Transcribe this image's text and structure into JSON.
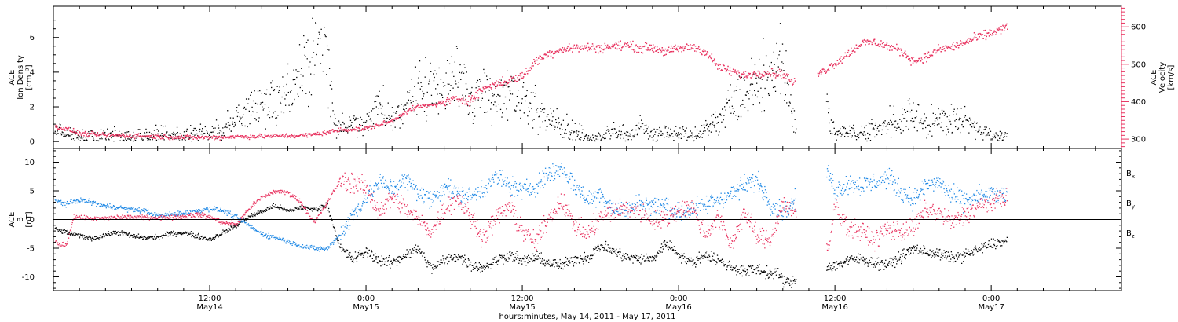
{
  "colors": {
    "black": "#000000",
    "pink": "#e8325f",
    "blue": "#1e88e5"
  },
  "xaxis": {
    "title": "hours:minutes, May 14, 2011 - May 17, 2011",
    "ticks": [
      {
        "t": 12,
        "time": "12:00",
        "day": "May14"
      },
      {
        "t": 24,
        "time": "0:00",
        "day": "May15"
      },
      {
        "t": 36,
        "time": "12:00",
        "day": "May15"
      },
      {
        "t": 48,
        "time": "0:00",
        "day": "May16"
      },
      {
        "t": 60,
        "time": "12:00",
        "day": "May16"
      },
      {
        "t": 72,
        "time": "0:00",
        "day": "May17"
      }
    ],
    "range_hours_from_may14_0000": [
      0,
      82
    ]
  },
  "chart_data": [
    {
      "type": "scatter",
      "panel": "ion-density-velocity",
      "ylabel_lines": [
        "ACE",
        "Ion Density",
        "[cm⁻³]"
      ],
      "ylabel_right_lines": [
        "ACE",
        "Velocity",
        "[km/s]"
      ],
      "ylim": [
        -0.4,
        7.8
      ],
      "yticks": [
        "0",
        "2",
        "4",
        "6"
      ],
      "ylim_right": [
        275,
        655
      ],
      "yticks_right": [
        "300",
        "400",
        "500",
        "600"
      ],
      "series": [
        {
          "axis": "left",
          "color": "black",
          "x": [
            0,
            1,
            2,
            4,
            6,
            8,
            10,
            12,
            13,
            14,
            15,
            16,
            17,
            18,
            19,
            20,
            20.8,
            21.5,
            22.5,
            24,
            25,
            26,
            27,
            28,
            29,
            30,
            31,
            32,
            33,
            34,
            35,
            36,
            37,
            38,
            39,
            40,
            41,
            42,
            43,
            44,
            45,
            46,
            47,
            48,
            49,
            50,
            51,
            52,
            53,
            54,
            55,
            56,
            57,
            58,
            59,
            60,
            61,
            62,
            63,
            64,
            65,
            66,
            67,
            68,
            69,
            70,
            71,
            72,
            73
          ],
          "y": [
            0.6,
            0.4,
            0.3,
            0.3,
            0.3,
            0.4,
            0.4,
            0.5,
            0.7,
            1.3,
            1.8,
            2.0,
            2.5,
            3.0,
            4.0,
            4.8,
            6.0,
            1.0,
            0.9,
            1.0,
            2.2,
            1.4,
            2.2,
            3.3,
            3.1,
            2.8,
            4.0,
            2.4,
            3.0,
            2.6,
            3.0,
            2.5,
            2.0,
            1.2,
            1.0,
            0.6,
            0.2,
            0.3,
            0.6,
            0.3,
            0.9,
            0.3,
            0.5,
            0.5,
            0.3,
            0.7,
            1.3,
            2.4,
            2.8,
            3.6,
            3.5,
            5.0,
            0.5,
            1.5,
            2.5,
            0.5,
            0.5,
            0.5,
            0.7,
            1.0,
            1.2,
            1.5,
            1.1,
            1.3,
            1.3,
            1.2,
            0.7,
            0.4,
            0.4
          ]
        },
        {
          "axis": "right",
          "color": "pink",
          "x": [
            0,
            1,
            2,
            4,
            6,
            8,
            10,
            12,
            14,
            16,
            18,
            19,
            20,
            21,
            22,
            23,
            24,
            25,
            26,
            27,
            28,
            29,
            30,
            31,
            32,
            33,
            34,
            35,
            36,
            37,
            38,
            39,
            40,
            41,
            42,
            43,
            44,
            45,
            46,
            47,
            48,
            49,
            50,
            51,
            52,
            53,
            54,
            55,
            56,
            56.8,
            59,
            60,
            61,
            62,
            63,
            64,
            65,
            66,
            67,
            68,
            69,
            70,
            71,
            72,
            73
          ],
          "y": [
            335,
            328,
            316,
            312,
            310,
            308,
            306,
            306,
            308,
            309,
            310,
            311,
            314,
            320,
            326,
            328,
            330,
            340,
            350,
            375,
            388,
            392,
            400,
            410,
            405,
            438,
            450,
            458,
            470,
            510,
            530,
            542,
            545,
            546,
            545,
            550,
            552,
            545,
            546,
            535,
            543,
            548,
            536,
            495,
            482,
            472,
            478,
            480,
            475,
            450,
            482,
            505,
            530,
            558,
            560,
            550,
            538,
            510,
            520,
            542,
            548,
            560,
            575,
            585,
            600
          ]
        }
      ]
    },
    {
      "type": "scatter",
      "panel": "magnetic-field",
      "ylabel_lines": [
        "ACE",
        "B",
        "[nT]"
      ],
      "ylim": [
        -12.4,
        12.4
      ],
      "yticks": [
        "-10",
        "-5",
        "0",
        "5",
        "10"
      ],
      "legend": [
        "Bx",
        "By",
        "Bz"
      ],
      "legend_placement": "right",
      "series": [
        {
          "name": "Bx",
          "color": "black",
          "x": [
            0,
            1,
            2,
            3,
            4,
            5,
            6,
            7,
            8,
            9,
            10,
            11,
            12,
            13,
            14,
            15,
            16,
            17,
            18,
            19,
            20,
            21,
            22,
            23,
            24,
            25,
            26,
            27,
            28,
            29,
            30,
            31,
            32,
            33,
            34,
            35,
            36,
            37,
            38,
            39,
            40,
            41,
            42,
            43,
            44,
            45,
            46,
            47,
            48,
            49,
            50,
            51,
            52,
            53,
            54,
            55,
            55.5,
            56,
            56.5,
            59.5,
            60,
            61,
            62,
            63,
            64,
            65,
            66,
            67,
            68,
            69,
            70,
            71,
            72,
            73
          ],
          "y": [
            -1.5,
            -2.2,
            -2.8,
            -3.2,
            -2.6,
            -2.1,
            -2.8,
            -3.1,
            -3.0,
            -2.4,
            -2.2,
            -2.8,
            -3.4,
            -2.2,
            -1.0,
            0.6,
            1.5,
            2.5,
            1.5,
            2.2,
            1.8,
            2.6,
            -5.0,
            -6.8,
            -5.5,
            -7.0,
            -7.5,
            -6.0,
            -5.0,
            -8.5,
            -7.0,
            -6.2,
            -7.8,
            -8.3,
            -7.0,
            -6.0,
            -7.2,
            -6.5,
            -7.5,
            -8.0,
            -6.8,
            -6.5,
            -4.5,
            -5.5,
            -6.5,
            -6.8,
            -6.8,
            -4.0,
            -6.0,
            -7.5,
            -6.0,
            -7.0,
            -8.2,
            -9.0,
            -8.5,
            -9.5,
            -9.0,
            -10.5,
            -11.0,
            -8.0,
            -8.0,
            -7.0,
            -6.8,
            -7.4,
            -7.8,
            -6.5,
            -5.0,
            -5.6,
            -6.0,
            -6.7,
            -6.0,
            -5.2,
            -4.2,
            -3.8
          ]
        },
        {
          "name": "By",
          "color": "blue",
          "x": [
            0,
            1,
            2,
            3,
            4,
            5,
            6,
            7,
            8,
            9,
            10,
            11,
            12,
            13,
            14,
            15,
            16,
            17,
            18,
            19,
            20,
            21,
            22,
            23,
            24,
            25,
            26,
            27,
            28,
            29,
            30,
            31,
            32,
            33,
            34,
            35,
            36,
            37,
            38,
            39,
            40,
            41,
            42,
            43,
            44,
            45,
            46,
            47,
            48,
            49,
            50,
            51,
            52,
            53,
            54,
            55,
            56,
            59.5,
            60,
            61,
            62,
            63,
            64,
            65,
            66,
            67,
            68,
            69,
            70,
            71,
            72,
            73
          ],
          "y": [
            3.5,
            2.8,
            3.5,
            3.0,
            2.4,
            2.2,
            1.8,
            1.6,
            0.7,
            1.0,
            1.2,
            1.6,
            2.0,
            1.6,
            0.5,
            -1.0,
            -2.5,
            -3.0,
            -3.8,
            -4.5,
            -5.0,
            -5.0,
            -2.5,
            1.0,
            4.0,
            6.5,
            5.5,
            7.0,
            4.8,
            3.5,
            6.0,
            4.5,
            4.0,
            5.5,
            7.5,
            6.0,
            5.0,
            6.0,
            8.0,
            9.0,
            6.0,
            3.5,
            4.5,
            2.0,
            1.5,
            3.0,
            2.5,
            2.5,
            1.0,
            1.8,
            2.5,
            3.6,
            4.5,
            6.0,
            7.0,
            3.0,
            1.5,
            8.0,
            5.0,
            6.5,
            6.0,
            6.5,
            7.5,
            5.0,
            3.5,
            6.0,
            6.5,
            4.0,
            3.5,
            4.0,
            4.5,
            4.0
          ]
        },
        {
          "name": "Bz",
          "color": "pink",
          "x": [
            0,
            0.5,
            1,
            1.5,
            2,
            3,
            4,
            5,
            6,
            7,
            8,
            9,
            10,
            11,
            12,
            13,
            14,
            15,
            16,
            17,
            18,
            19,
            20,
            21,
            22,
            23,
            24,
            25,
            26,
            27,
            28,
            29,
            30,
            31,
            32,
            33,
            34,
            35,
            36,
            37,
            38,
            39,
            40,
            41,
            42,
            43,
            44,
            45,
            46,
            47,
            48,
            49,
            50,
            51,
            52,
            53,
            54,
            55,
            56,
            59.5,
            60,
            61,
            62,
            63,
            64,
            65,
            66,
            67,
            68,
            69,
            70,
            71,
            72,
            73
          ],
          "y": [
            -3.5,
            -4.5,
            -4.2,
            0.5,
            0.5,
            0.2,
            0.3,
            0.5,
            0.5,
            0.5,
            0.4,
            0.5,
            0.6,
            1.0,
            0.5,
            -0.5,
            -0.8,
            2.0,
            4.0,
            5.0,
            4.8,
            3.0,
            -0.5,
            3.0,
            7.0,
            6.5,
            5.5,
            1.5,
            4.0,
            2.0,
            0.0,
            -2.0,
            2.0,
            4.0,
            0.5,
            -3.0,
            0.5,
            2.5,
            -2.0,
            -4.0,
            0.5,
            3.5,
            -1.0,
            -2.5,
            0.5,
            1.5,
            2.0,
            1.5,
            0.0,
            0.0,
            2.0,
            2.2,
            -2.5,
            0.5,
            -4.5,
            1.5,
            -3.0,
            -3.5,
            3.0,
            -5.0,
            3.0,
            -1.5,
            -2.0,
            -3.5,
            -1.5,
            -2.0,
            -1.5,
            2.0,
            1.0,
            -0.5,
            1.0,
            2.5,
            3.0,
            4.0
          ]
        }
      ]
    }
  ]
}
